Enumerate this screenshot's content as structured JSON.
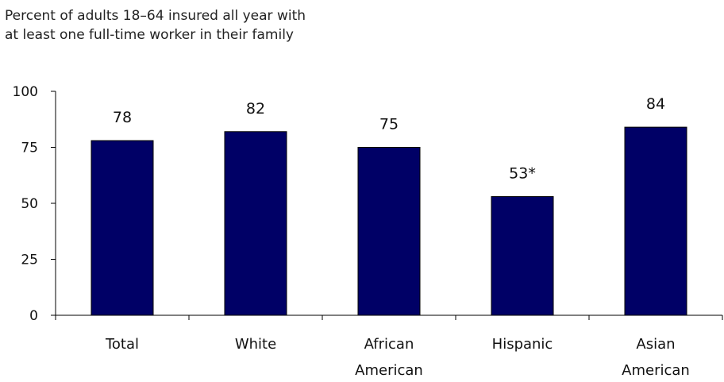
{
  "chart_data": {
    "type": "bar",
    "title_lines": [
      "Percent of adults 18–64 insured all year with",
      "at least one full-time worker in their family"
    ],
    "categories": [
      [
        "Total"
      ],
      [
        "White"
      ],
      [
        "African",
        "American"
      ],
      [
        "Hispanic"
      ],
      [
        "Asian",
        "American"
      ]
    ],
    "values": [
      78,
      82,
      75,
      53,
      84
    ],
    "value_labels": [
      "78",
      "82",
      "75",
      "53*",
      "84"
    ],
    "y_ticks": [
      "0",
      "25",
      "50",
      "75",
      "100"
    ],
    "ylim": [
      0,
      100
    ],
    "bar_color": "#000066",
    "grid": false
  }
}
